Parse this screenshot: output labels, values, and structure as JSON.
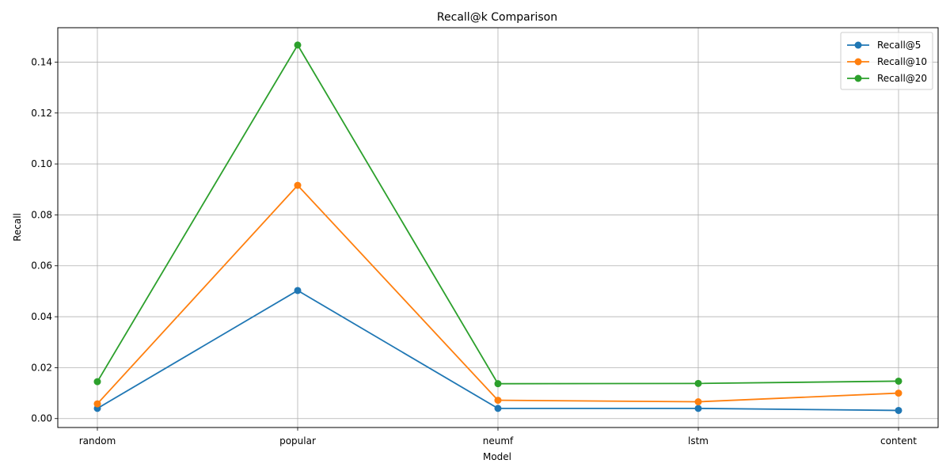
{
  "chart_data": {
    "type": "line",
    "title": "Recall@k Comparison",
    "xlabel": "Model",
    "ylabel": "Recall",
    "categories": [
      "random",
      "popular",
      "neumf",
      "lstm",
      "content"
    ],
    "ylim": [
      -0.0035,
      0.1535
    ],
    "yticks": [
      0.0,
      0.02,
      0.04,
      0.06,
      0.08,
      0.1,
      0.12,
      0.14
    ],
    "ytick_labels": [
      "0.00",
      "0.02",
      "0.04",
      "0.06",
      "0.08",
      "0.10",
      "0.12",
      "0.14"
    ],
    "grid": true,
    "legend_position": "top-right",
    "series": [
      {
        "name": "Recall@5",
        "color": "#1f77b4",
        "values": [
          0.004,
          0.0503,
          0.004,
          0.004,
          0.0032
        ]
      },
      {
        "name": "Recall@10",
        "color": "#ff7f0e",
        "values": [
          0.0058,
          0.0916,
          0.0072,
          0.0066,
          0.01
        ]
      },
      {
        "name": "Recall@20",
        "color": "#2ca02c",
        "values": [
          0.0145,
          0.1467,
          0.0137,
          0.0138,
          0.0147
        ]
      }
    ]
  }
}
